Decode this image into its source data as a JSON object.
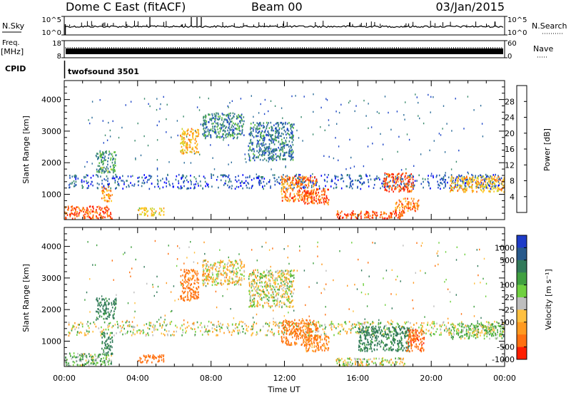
{
  "header": {
    "station": "Dome C East (fitACF)",
    "beam": "Beam 00",
    "date": "03/Jan/2015"
  },
  "strip_panels": {
    "nsky": {
      "label": "N.Sky",
      "top_tick": "10^5",
      "bottom_tick": "10^0"
    },
    "nsearch": {
      "label": "N.Search",
      "top_tick": "10^5",
      "bottom_tick": "10^0"
    },
    "freq": {
      "label_line1": "Freq.",
      "label_line2": "[MHz]",
      "top_tick": "18",
      "bottom_tick": "8"
    },
    "nave": {
      "label": "Nave",
      "top_tick": "60",
      "bottom_tick": "0"
    },
    "cpid": {
      "label": "CPID",
      "program": "twofsound 3501"
    }
  },
  "chart_data": [
    {
      "type": "heatmap",
      "panel": "power",
      "xlabel": "",
      "ylabel": "Slant Range [km]",
      "xlim": [
        0,
        24
      ],
      "ylim": [
        200,
        4600
      ],
      "y_ticks": [
        "1000",
        "2000",
        "3000",
        "4000"
      ],
      "colorbar": {
        "label": "Power [dB]",
        "range": [
          0,
          32
        ],
        "ticks": [
          "4",
          "8",
          "12",
          "16",
          "20",
          "24",
          "28"
        ],
        "colors": [
          "#0000ff",
          "#1e46c8",
          "#2d6e9b",
          "#3c8c6e",
          "#5abe3c",
          "#c8d228",
          "#ffc81e",
          "#ff9614",
          "#ff640a",
          "#ff1e00"
        ]
      },
      "echo_regions": [
        {
          "t0": 0.0,
          "t1": 2.6,
          "r0": 250,
          "r1": 650,
          "power": 28
        },
        {
          "t0": 0.2,
          "t1": 24.0,
          "r0": 1200,
          "r1": 1650,
          "power": 6
        },
        {
          "t0": 1.7,
          "t1": 2.8,
          "r0": 1700,
          "r1": 2400,
          "power": 12
        },
        {
          "t0": 2.0,
          "t1": 2.6,
          "r0": 800,
          "r1": 1300,
          "power": 24
        },
        {
          "t0": 4.0,
          "t1": 5.4,
          "r0": 350,
          "r1": 600,
          "power": 20
        },
        {
          "t0": 6.3,
          "t1": 7.3,
          "r0": 2300,
          "r1": 3100,
          "power": 22
        },
        {
          "t0": 7.5,
          "t1": 9.8,
          "r0": 2800,
          "r1": 3600,
          "power": 10
        },
        {
          "t0": 10.0,
          "t1": 12.5,
          "r0": 2100,
          "r1": 3300,
          "power": 9
        },
        {
          "t0": 11.8,
          "t1": 13.8,
          "r0": 800,
          "r1": 1600,
          "power": 26
        },
        {
          "t0": 13.0,
          "t1": 14.4,
          "r0": 700,
          "r1": 1200,
          "power": 29
        },
        {
          "t0": 14.8,
          "t1": 18.6,
          "r0": 250,
          "r1": 500,
          "power": 29
        },
        {
          "t0": 18.0,
          "t1": 19.3,
          "r0": 500,
          "r1": 900,
          "power": 26
        },
        {
          "t0": 17.4,
          "t1": 19.0,
          "r0": 1100,
          "r1": 1700,
          "power": 28
        },
        {
          "t0": 21.0,
          "t1": 24.0,
          "r0": 1100,
          "r1": 1600,
          "power": 22
        }
      ]
    },
    {
      "type": "heatmap",
      "panel": "velocity",
      "xlabel": "Time UT",
      "ylabel": "Slant Range [km]",
      "xlim": [
        0,
        24
      ],
      "ylim": [
        200,
        4600
      ],
      "x_ticks": [
        "00:00",
        "04:00",
        "08:00",
        "12:00",
        "16:00",
        "20:00",
        "00:00"
      ],
      "y_ticks": [
        "1000",
        "2000",
        "3000",
        "4000"
      ],
      "colorbar": {
        "label": "Velocity [m s⁻¹]",
        "ticks": [
          "1000",
          "500",
          "100",
          "25",
          "-25",
          "-100",
          "-500",
          "-1000"
        ],
        "colors": [
          "#1e3cc8",
          "#285a8c",
          "#327a5a",
          "#40a040",
          "#70d040",
          "#bebebe",
          "#ffc040",
          "#ff9a20",
          "#ff7010",
          "#ff1e00"
        ]
      },
      "echo_regions": [
        {
          "t0": 0.0,
          "t1": 2.6,
          "r0": 250,
          "r1": 650,
          "velocity": 100
        },
        {
          "t0": 0.2,
          "t1": 24.0,
          "r0": 1200,
          "r1": 1650,
          "velocity": 0
        },
        {
          "t0": 1.7,
          "t1": 2.8,
          "r0": 1700,
          "r1": 2400,
          "velocity": 300
        },
        {
          "t0": 2.0,
          "t1": 2.6,
          "r0": 600,
          "r1": 1300,
          "velocity": 300
        },
        {
          "t0": 4.0,
          "t1": 5.4,
          "r0": 350,
          "r1": 600,
          "velocity": -300
        },
        {
          "t0": 6.3,
          "t1": 7.3,
          "r0": 2300,
          "r1": 3300,
          "velocity": -300
        },
        {
          "t0": 7.5,
          "t1": 9.8,
          "r0": 2800,
          "r1": 3600,
          "velocity": -60
        },
        {
          "t0": 10.0,
          "t1": 12.5,
          "r0": 2100,
          "r1": 3300,
          "velocity": 0
        },
        {
          "t0": 11.8,
          "t1": 13.8,
          "r0": 900,
          "r1": 1700,
          "velocity": -300
        },
        {
          "t0": 13.0,
          "t1": 14.4,
          "r0": 700,
          "r1": 1200,
          "velocity": -200
        },
        {
          "t0": 14.8,
          "t1": 18.6,
          "r0": 250,
          "r1": 500,
          "velocity": 0
        },
        {
          "t0": 16.0,
          "t1": 18.8,
          "r0": 700,
          "r1": 1500,
          "velocity": 300
        },
        {
          "t0": 18.6,
          "t1": 19.6,
          "r0": 700,
          "r1": 1400,
          "velocity": -400
        },
        {
          "t0": 21.0,
          "t1": 24.0,
          "r0": 1100,
          "r1": 1600,
          "velocity": 60
        }
      ]
    }
  ]
}
